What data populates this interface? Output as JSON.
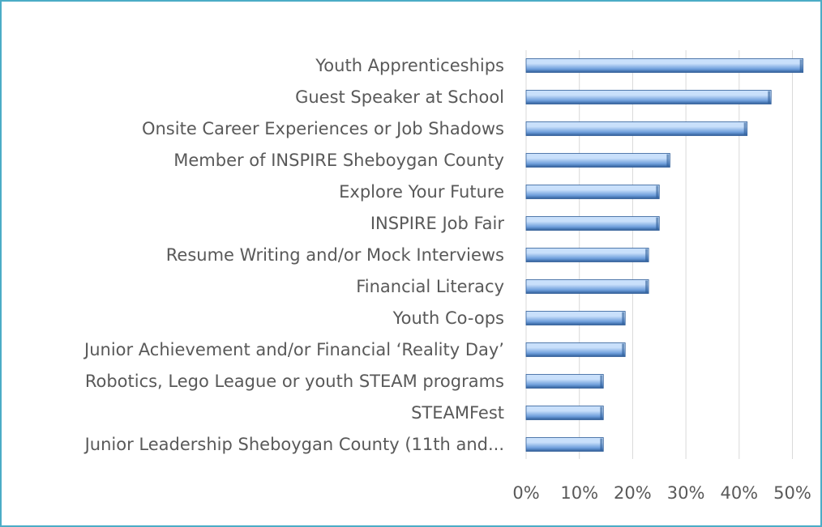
{
  "colors": {
    "bar": "#6f9fdc",
    "bar_light": "#c9e0fb",
    "bar_dark": "#2f5d98",
    "grid": "#d9d9d9",
    "text": "#595959",
    "border": "#4bacc6"
  },
  "chart_data": {
    "type": "bar",
    "orientation": "horizontal",
    "categories": [
      "Youth Apprenticeships",
      "Guest Speaker at School",
      "Onsite Career Experiences or Job Shadows",
      "Member of INSPIRE Sheboygan County",
      "Explore Your Future",
      "INSPIRE Job Fair",
      "Resume Writing and/or Mock Interviews",
      "Financial Literacy",
      "Youth Co-ops",
      "Junior Achievement and/or Financial ‘Reality Day’",
      "Robotics, Lego League or youth STEAM programs",
      "STEAMFest",
      "Junior Leadership Sheboygan County (11th and..."
    ],
    "values": [
      52,
      46,
      41.5,
      27,
      25,
      25,
      23,
      23,
      18.6,
      18.6,
      14.5,
      14.5,
      14.5
    ],
    "xlim": [
      0,
      50
    ],
    "xticks": [
      "0%",
      "10%",
      "20%",
      "30%",
      "40%",
      "50%"
    ],
    "xtick_values": [
      0,
      10,
      20,
      30,
      40,
      50
    ],
    "grid": "vertical",
    "title": "",
    "xlabel": "",
    "ylabel": ""
  }
}
